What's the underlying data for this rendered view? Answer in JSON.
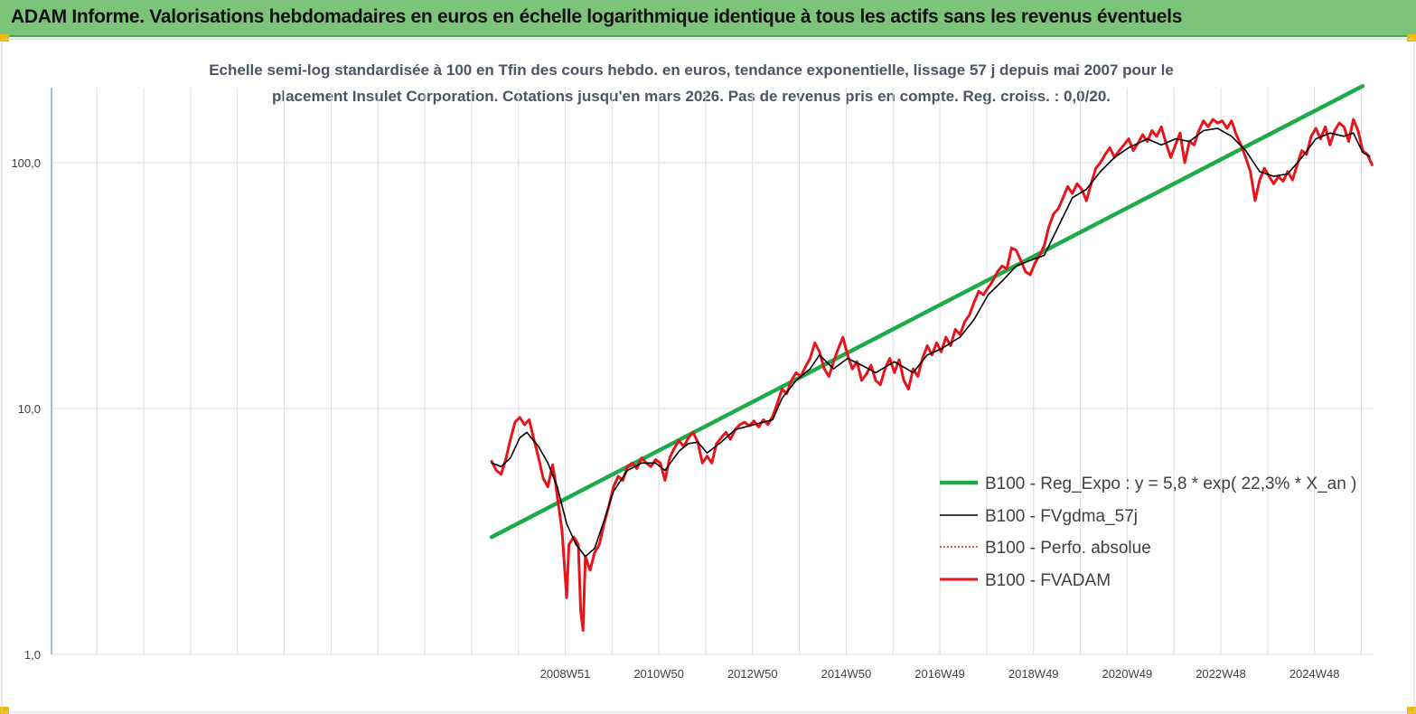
{
  "header": {
    "title": "ADAM Informe. Valorisations hebdomadaires en euros en échelle logarithmique identique à tous les actifs sans les revenus éventuels"
  },
  "chart_data": {
    "type": "line",
    "title_line1": "Echelle semi-log standardisée à 100 en Tfin des cours hebdo. en euros, tendance exponentielle, lissage 57 j depuis mai 2007 pour le",
    "title_line2": "placement Insulet Corporation. Cotations jusqu'en mars 2026.  Pas de revenus pris en compte. Reg. croiss. : 0,0/20.",
    "y_scale": "log",
    "ylim": [
      1,
      200
    ],
    "xlim": [
      1998.0,
      2026.25
    ],
    "grid": true,
    "legend_position": "right",
    "yticks": [
      {
        "value": 1,
        "label": "1,0"
      },
      {
        "value": 10,
        "label": "10,0"
      },
      {
        "value": 100,
        "label": "100,0"
      }
    ],
    "xticks": [
      {
        "value": 2008.97,
        "label": "2008W51"
      },
      {
        "value": 2010.97,
        "label": "2010W50"
      },
      {
        "value": 2012.97,
        "label": "2012W50"
      },
      {
        "value": 2014.97,
        "label": "2014W50"
      },
      {
        "value": 2016.97,
        "label": "2016W49"
      },
      {
        "value": 2018.97,
        "label": "2018W49"
      },
      {
        "value": 2020.97,
        "label": "2020W49"
      },
      {
        "value": 2022.97,
        "label": "2022W48"
      },
      {
        "value": 2024.97,
        "label": "2024W48"
      }
    ],
    "series": [
      {
        "name": "B100 - Reg_Expo : y = 5,8 * exp( 22,3% *  X_an )",
        "color": "#1faa4a",
        "style": "thick",
        "points": [
          [
            2007.4,
            3.0
          ],
          [
            2026.0,
            205
          ]
        ]
      },
      {
        "name": "B100 - FVgdma_57j",
        "color": "#000000",
        "style": "thin",
        "points": [
          [
            2007.4,
            6.0
          ],
          [
            2007.6,
            5.8
          ],
          [
            2007.8,
            6.3
          ],
          [
            2008.0,
            7.6
          ],
          [
            2008.15,
            8.0
          ],
          [
            2008.4,
            7.0
          ],
          [
            2008.6,
            6.0
          ],
          [
            2008.8,
            4.8
          ],
          [
            2009.0,
            3.4
          ],
          [
            2009.2,
            2.8
          ],
          [
            2009.4,
            2.5
          ],
          [
            2009.6,
            2.7
          ],
          [
            2009.8,
            3.5
          ],
          [
            2010.0,
            4.6
          ],
          [
            2010.3,
            5.6
          ],
          [
            2010.6,
            6.0
          ],
          [
            2010.9,
            6.0
          ],
          [
            2011.1,
            5.6
          ],
          [
            2011.4,
            6.7
          ],
          [
            2011.6,
            7.2
          ],
          [
            2011.8,
            7.3
          ],
          [
            2012.0,
            6.6
          ],
          [
            2012.3,
            7.3
          ],
          [
            2012.6,
            8.2
          ],
          [
            2013.0,
            8.6
          ],
          [
            2013.4,
            9.0
          ],
          [
            2013.6,
            11.0
          ],
          [
            2013.9,
            13.0
          ],
          [
            2014.2,
            14.5
          ],
          [
            2014.4,
            16.5
          ],
          [
            2014.7,
            14.5
          ],
          [
            2015.0,
            16.0
          ],
          [
            2015.3,
            15.0
          ],
          [
            2015.6,
            14.0
          ],
          [
            2016.0,
            15.5
          ],
          [
            2016.4,
            14.0
          ],
          [
            2016.7,
            16.5
          ],
          [
            2017.0,
            17.5
          ],
          [
            2017.4,
            19.5
          ],
          [
            2017.7,
            23.0
          ],
          [
            2018.0,
            29.0
          ],
          [
            2018.3,
            33.0
          ],
          [
            2018.6,
            38.0
          ],
          [
            2018.9,
            40.0
          ],
          [
            2019.2,
            42.0
          ],
          [
            2019.5,
            55.0
          ],
          [
            2019.8,
            72.0
          ],
          [
            2020.1,
            78.0
          ],
          [
            2020.4,
            92.0
          ],
          [
            2020.7,
            105.0
          ],
          [
            2021.0,
            115.0
          ],
          [
            2021.4,
            125.0
          ],
          [
            2021.7,
            118.0
          ],
          [
            2022.0,
            125.0
          ],
          [
            2022.3,
            122.0
          ],
          [
            2022.6,
            135.0
          ],
          [
            2022.9,
            138.0
          ],
          [
            2023.2,
            128.0
          ],
          [
            2023.5,
            112.0
          ],
          [
            2023.8,
            92.0
          ],
          [
            2024.1,
            88.0
          ],
          [
            2024.4,
            90.0
          ],
          [
            2024.7,
            105.0
          ],
          [
            2025.0,
            125.0
          ],
          [
            2025.3,
            132.0
          ],
          [
            2025.6,
            128.0
          ],
          [
            2025.8,
            132.0
          ],
          [
            2026.0,
            110.0
          ],
          [
            2026.15,
            106.0
          ]
        ]
      },
      {
        "name": "B100 - Perfo. absolue",
        "color": "#e0201c",
        "style": "dotted",
        "points": []
      },
      {
        "name": "B100 - FVADAM",
        "color": "#e8141b",
        "style": "thick",
        "points": [
          [
            2007.4,
            6.1
          ],
          [
            2007.5,
            5.6
          ],
          [
            2007.6,
            5.4
          ],
          [
            2007.7,
            6.2
          ],
          [
            2007.8,
            7.5
          ],
          [
            2007.9,
            8.8
          ],
          [
            2008.0,
            9.2
          ],
          [
            2008.1,
            8.6
          ],
          [
            2008.2,
            9.0
          ],
          [
            2008.3,
            7.5
          ],
          [
            2008.4,
            6.3
          ],
          [
            2008.5,
            5.2
          ],
          [
            2008.6,
            4.8
          ],
          [
            2008.7,
            5.9
          ],
          [
            2008.75,
            5.2
          ],
          [
            2008.8,
            4.4
          ],
          [
            2008.9,
            3.2
          ],
          [
            2009.0,
            1.7
          ],
          [
            2009.05,
            2.8
          ],
          [
            2009.15,
            3.0
          ],
          [
            2009.25,
            2.8
          ],
          [
            2009.3,
            1.5
          ],
          [
            2009.35,
            1.25
          ],
          [
            2009.4,
            2.5
          ],
          [
            2009.5,
            2.2
          ],
          [
            2009.6,
            2.6
          ],
          [
            2009.7,
            2.8
          ],
          [
            2009.8,
            3.4
          ],
          [
            2009.9,
            4.0
          ],
          [
            2010.0,
            4.8
          ],
          [
            2010.1,
            5.3
          ],
          [
            2010.2,
            5.1
          ],
          [
            2010.3,
            5.8
          ],
          [
            2010.4,
            6.0
          ],
          [
            2010.5,
            5.7
          ],
          [
            2010.6,
            6.3
          ],
          [
            2010.7,
            6.0
          ],
          [
            2010.8,
            5.8
          ],
          [
            2010.9,
            6.2
          ],
          [
            2011.0,
            6.0
          ],
          [
            2011.1,
            5.1
          ],
          [
            2011.2,
            6.3
          ],
          [
            2011.3,
            6.9
          ],
          [
            2011.4,
            7.4
          ],
          [
            2011.5,
            7.0
          ],
          [
            2011.6,
            7.6
          ],
          [
            2011.7,
            8.0
          ],
          [
            2011.8,
            7.3
          ],
          [
            2011.9,
            6.0
          ],
          [
            2012.0,
            6.4
          ],
          [
            2012.1,
            6.0
          ],
          [
            2012.2,
            7.2
          ],
          [
            2012.3,
            7.6
          ],
          [
            2012.4,
            8.0
          ],
          [
            2012.5,
            7.5
          ],
          [
            2012.6,
            8.2
          ],
          [
            2012.7,
            8.6
          ],
          [
            2012.8,
            8.8
          ],
          [
            2012.9,
            8.5
          ],
          [
            2013.0,
            8.9
          ],
          [
            2013.1,
            8.4
          ],
          [
            2013.2,
            9.0
          ],
          [
            2013.3,
            8.6
          ],
          [
            2013.4,
            9.3
          ],
          [
            2013.5,
            10.5
          ],
          [
            2013.6,
            12.0
          ],
          [
            2013.7,
            11.5
          ],
          [
            2013.8,
            13.0
          ],
          [
            2013.9,
            14.0
          ],
          [
            2014.0,
            13.5
          ],
          [
            2014.1,
            14.8
          ],
          [
            2014.2,
            16.0
          ],
          [
            2014.3,
            18.5
          ],
          [
            2014.4,
            17.0
          ],
          [
            2014.5,
            14.5
          ],
          [
            2014.6,
            13.5
          ],
          [
            2014.7,
            15.5
          ],
          [
            2014.8,
            17.5
          ],
          [
            2014.9,
            19.5
          ],
          [
            2015.0,
            16.5
          ],
          [
            2015.1,
            14.5
          ],
          [
            2015.2,
            15.5
          ],
          [
            2015.3,
            13.0
          ],
          [
            2015.4,
            13.8
          ],
          [
            2015.5,
            15.0
          ],
          [
            2015.6,
            13.0
          ],
          [
            2015.7,
            12.5
          ],
          [
            2015.8,
            14.5
          ],
          [
            2015.9,
            16.0
          ],
          [
            2016.0,
            14.0
          ],
          [
            2016.1,
            15.8
          ],
          [
            2016.2,
            13.0
          ],
          [
            2016.3,
            12.0
          ],
          [
            2016.4,
            14.5
          ],
          [
            2016.5,
            13.5
          ],
          [
            2016.6,
            16.0
          ],
          [
            2016.7,
            18.0
          ],
          [
            2016.8,
            16.5
          ],
          [
            2016.9,
            18.5
          ],
          [
            2017.0,
            17.0
          ],
          [
            2017.1,
            19.5
          ],
          [
            2017.2,
            18.0
          ],
          [
            2017.3,
            21.0
          ],
          [
            2017.4,
            20.0
          ],
          [
            2017.5,
            22.5
          ],
          [
            2017.6,
            24.0
          ],
          [
            2017.7,
            27.0
          ],
          [
            2017.8,
            30.0
          ],
          [
            2017.9,
            29.0
          ],
          [
            2018.0,
            31.0
          ],
          [
            2018.1,
            33.0
          ],
          [
            2018.2,
            36.0
          ],
          [
            2018.3,
            38.0
          ],
          [
            2018.4,
            37.0
          ],
          [
            2018.5,
            45.0
          ],
          [
            2018.6,
            44.0
          ],
          [
            2018.7,
            40.0
          ],
          [
            2018.8,
            36.0
          ],
          [
            2018.9,
            35.0
          ],
          [
            2019.0,
            39.0
          ],
          [
            2019.1,
            42.0
          ],
          [
            2019.2,
            46.0
          ],
          [
            2019.3,
            55.0
          ],
          [
            2019.4,
            62.0
          ],
          [
            2019.5,
            65.0
          ],
          [
            2019.6,
            72.0
          ],
          [
            2019.7,
            80.0
          ],
          [
            2019.8,
            75.0
          ],
          [
            2019.9,
            82.0
          ],
          [
            2020.0,
            78.0
          ],
          [
            2020.1,
            70.0
          ],
          [
            2020.2,
            82.0
          ],
          [
            2020.3,
            95.0
          ],
          [
            2020.4,
            100.0
          ],
          [
            2020.5,
            108.0
          ],
          [
            2020.6,
            115.0
          ],
          [
            2020.7,
            105.0
          ],
          [
            2020.8,
            112.0
          ],
          [
            2020.9,
            118.0
          ],
          [
            2021.0,
            125.0
          ],
          [
            2021.1,
            112.0
          ],
          [
            2021.2,
            120.0
          ],
          [
            2021.3,
            130.0
          ],
          [
            2021.4,
            122.0
          ],
          [
            2021.5,
            135.0
          ],
          [
            2021.6,
            128.0
          ],
          [
            2021.7,
            140.0
          ],
          [
            2021.8,
            120.0
          ],
          [
            2021.9,
            105.0
          ],
          [
            2022.0,
            118.0
          ],
          [
            2022.1,
            132.0
          ],
          [
            2022.2,
            100.0
          ],
          [
            2022.3,
            122.0
          ],
          [
            2022.4,
            118.0
          ],
          [
            2022.5,
            135.0
          ],
          [
            2022.6,
            148.0
          ],
          [
            2022.7,
            140.0
          ],
          [
            2022.8,
            150.0
          ],
          [
            2022.9,
            145.0
          ],
          [
            2023.0,
            148.0
          ],
          [
            2023.1,
            138.0
          ],
          [
            2023.2,
            148.0
          ],
          [
            2023.3,
            130.0
          ],
          [
            2023.4,
            118.0
          ],
          [
            2023.5,
            105.0
          ],
          [
            2023.6,
            92.0
          ],
          [
            2023.7,
            70.0
          ],
          [
            2023.8,
            85.0
          ],
          [
            2023.9,
            95.0
          ],
          [
            2024.0,
            88.0
          ],
          [
            2024.1,
            82.0
          ],
          [
            2024.2,
            88.0
          ],
          [
            2024.3,
            84.0
          ],
          [
            2024.4,
            92.0
          ],
          [
            2024.5,
            85.0
          ],
          [
            2024.6,
            98.0
          ],
          [
            2024.7,
            112.0
          ],
          [
            2024.8,
            108.0
          ],
          [
            2024.9,
            128.0
          ],
          [
            2025.0,
            138.0
          ],
          [
            2025.1,
            125.0
          ],
          [
            2025.2,
            140.0
          ],
          [
            2025.3,
            118.0
          ],
          [
            2025.4,
            135.0
          ],
          [
            2025.5,
            145.0
          ],
          [
            2025.6,
            140.0
          ],
          [
            2025.7,
            122.0
          ],
          [
            2025.8,
            150.0
          ],
          [
            2025.9,
            135.0
          ],
          [
            2026.0,
            112.0
          ],
          [
            2026.1,
            108.0
          ],
          [
            2026.2,
            98.0
          ]
        ]
      }
    ]
  }
}
